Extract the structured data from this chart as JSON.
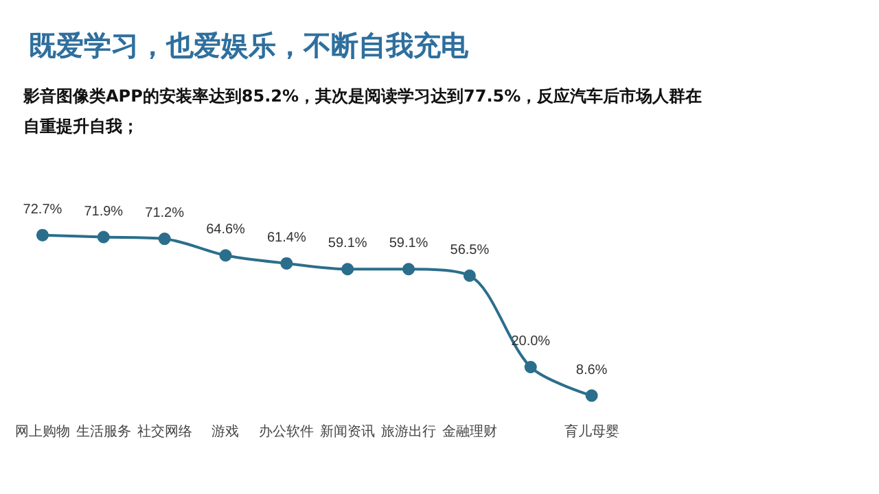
{
  "chart_data": {
    "type": "line",
    "title": "既爱学习，也爱娱乐，不断自我充电",
    "subtitle": "影音图像类APP的安装率达到85.2%，其次是阅读学习达到77.5%，反应汽车后市场人群在自重提升自我；",
    "categories": [
      "网上购物",
      "生活服务",
      "社交网络",
      "游戏",
      "办公软件",
      "新闻资讯",
      "旅游出行",
      "金融理财",
      null,
      "育儿母婴"
    ],
    "series": [
      {
        "color": "#2b6e8c",
        "values": [
          72.7,
          71.9,
          71.2,
          64.6,
          61.4,
          59.1,
          59.1,
          56.5,
          20.0,
          8.6
        ],
        "value_labels": [
          "72.7%",
          "71.9%",
          "71.2%",
          "64.6%",
          "61.4%",
          "59.1%",
          "59.1%",
          "56.5%",
          "20.0%",
          "8.6%"
        ]
      }
    ],
    "marker": "circle"
  }
}
